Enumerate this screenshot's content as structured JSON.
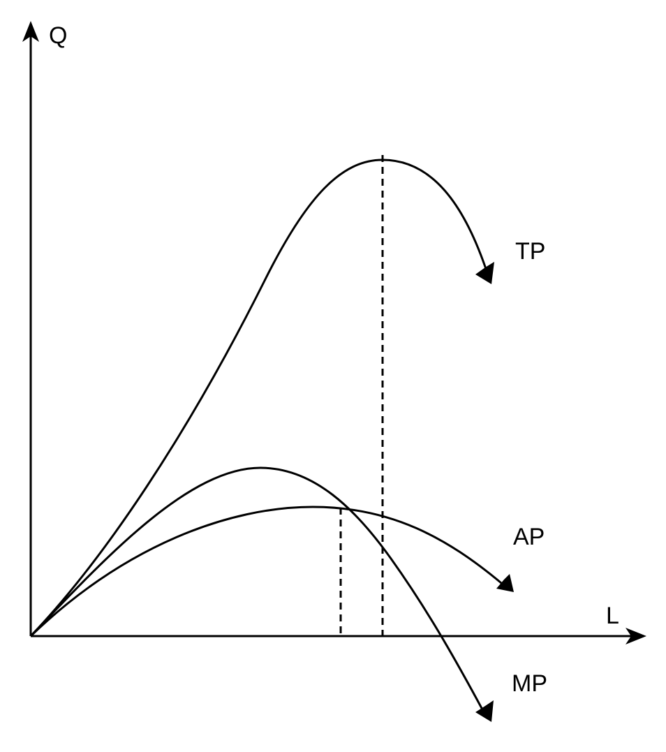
{
  "axes": {
    "y_label": "Q",
    "x_label": "L"
  },
  "curves": {
    "tp_label": "TP",
    "ap_label": "AP",
    "mp_label": "MP"
  },
  "colors": {
    "stroke": "#000000",
    "background": "#ffffff"
  }
}
